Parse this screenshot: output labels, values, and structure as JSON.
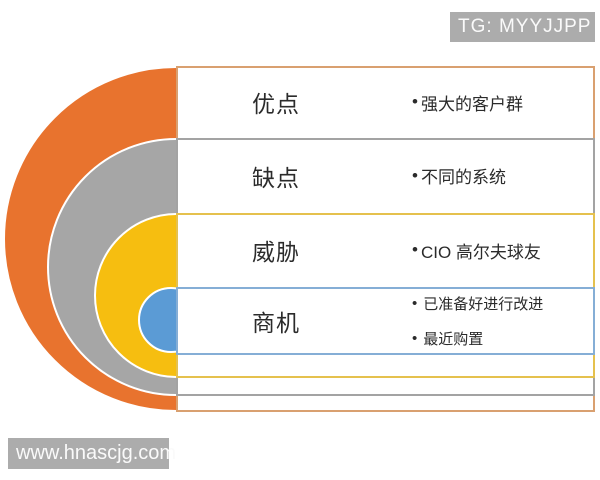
{
  "watermarks": {
    "top": "TG: MYYJJPP",
    "bottom": "www.hnascjg.com"
  },
  "bullet_char": "•",
  "diagram": {
    "type": "nested-rings-list",
    "rows": [
      {
        "label": "优点",
        "bullets": [
          "强大的客户群"
        ],
        "ring_color": "#E8732E",
        "outline_color": "#D9A070"
      },
      {
        "label": "缺点",
        "bullets": [
          "不同的系统"
        ],
        "ring_color": "#A6A6A6",
        "outline_color": "#A3A3A3"
      },
      {
        "label": "威胁",
        "bullets": [
          "CIO 高尔夫球友"
        ],
        "ring_color": "#F6BE10",
        "outline_color": "#E5C14E"
      },
      {
        "label": "商机",
        "bullets": [
          "已准备好进行改进",
          "最近购置"
        ],
        "ring_color": "#5B9BD5",
        "outline_color": "#85AED6"
      }
    ]
  }
}
